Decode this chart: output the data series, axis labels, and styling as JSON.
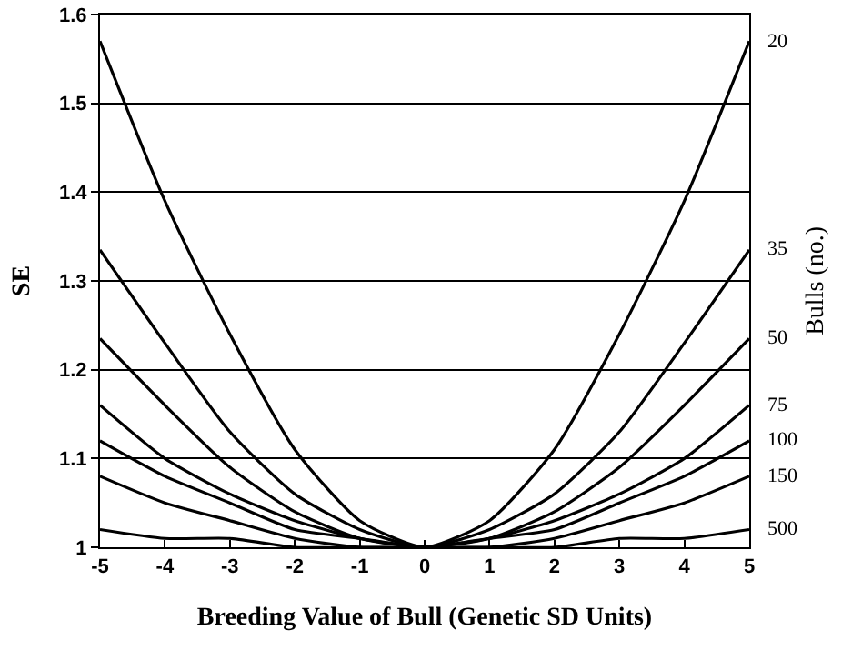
{
  "chart_data": {
    "type": "line",
    "xlabel": "Breeding Value of Bull (Genetic SD Units)",
    "ylabel": "SE",
    "y2label": "Bulls (no.)",
    "x": [
      -5,
      -4,
      -3,
      -2,
      -1,
      0,
      1,
      2,
      3,
      4,
      5
    ],
    "series": [
      {
        "name": "20",
        "color": "#000000",
        "values": [
          1.57,
          1.39,
          1.24,
          1.11,
          1.03,
          1,
          1.03,
          1.11,
          1.24,
          1.39,
          1.57
        ]
      },
      {
        "name": "35",
        "color": "#000000",
        "values": [
          1.335,
          1.23,
          1.13,
          1.06,
          1.02,
          1,
          1.02,
          1.06,
          1.13,
          1.23,
          1.335
        ]
      },
      {
        "name": "50",
        "color": "#000000",
        "values": [
          1.235,
          1.16,
          1.09,
          1.04,
          1.01,
          1,
          1.01,
          1.04,
          1.09,
          1.16,
          1.235
        ]
      },
      {
        "name": "75",
        "color": "#000000",
        "values": [
          1.16,
          1.1,
          1.06,
          1.03,
          1.01,
          1,
          1.01,
          1.03,
          1.06,
          1.1,
          1.16
        ]
      },
      {
        "name": "100",
        "color": "#000000",
        "values": [
          1.12,
          1.08,
          1.05,
          1.02,
          1.01,
          1,
          1.01,
          1.02,
          1.05,
          1.08,
          1.12
        ]
      },
      {
        "name": "150",
        "color": "#000000",
        "values": [
          1.08,
          1.05,
          1.03,
          1.01,
          1,
          1,
          1,
          1.01,
          1.03,
          1.05,
          1.08
        ]
      },
      {
        "name": "500",
        "color": "#000000",
        "values": [
          1.02,
          1.01,
          1.01,
          1,
          1,
          1,
          1,
          1,
          1.01,
          1.01,
          1.02
        ]
      }
    ],
    "xlim": [
      -5,
      5
    ],
    "xticks": [
      -5,
      -4,
      -3,
      -2,
      -1,
      0,
      1,
      2,
      3,
      4,
      5
    ],
    "ylim": [
      1,
      1.6
    ],
    "yticks": [
      1,
      1.1,
      1.2,
      1.3,
      1.4,
      1.5,
      1.6
    ],
    "grid": "y",
    "legend": false,
    "marker": "none",
    "line_style": "solid"
  }
}
